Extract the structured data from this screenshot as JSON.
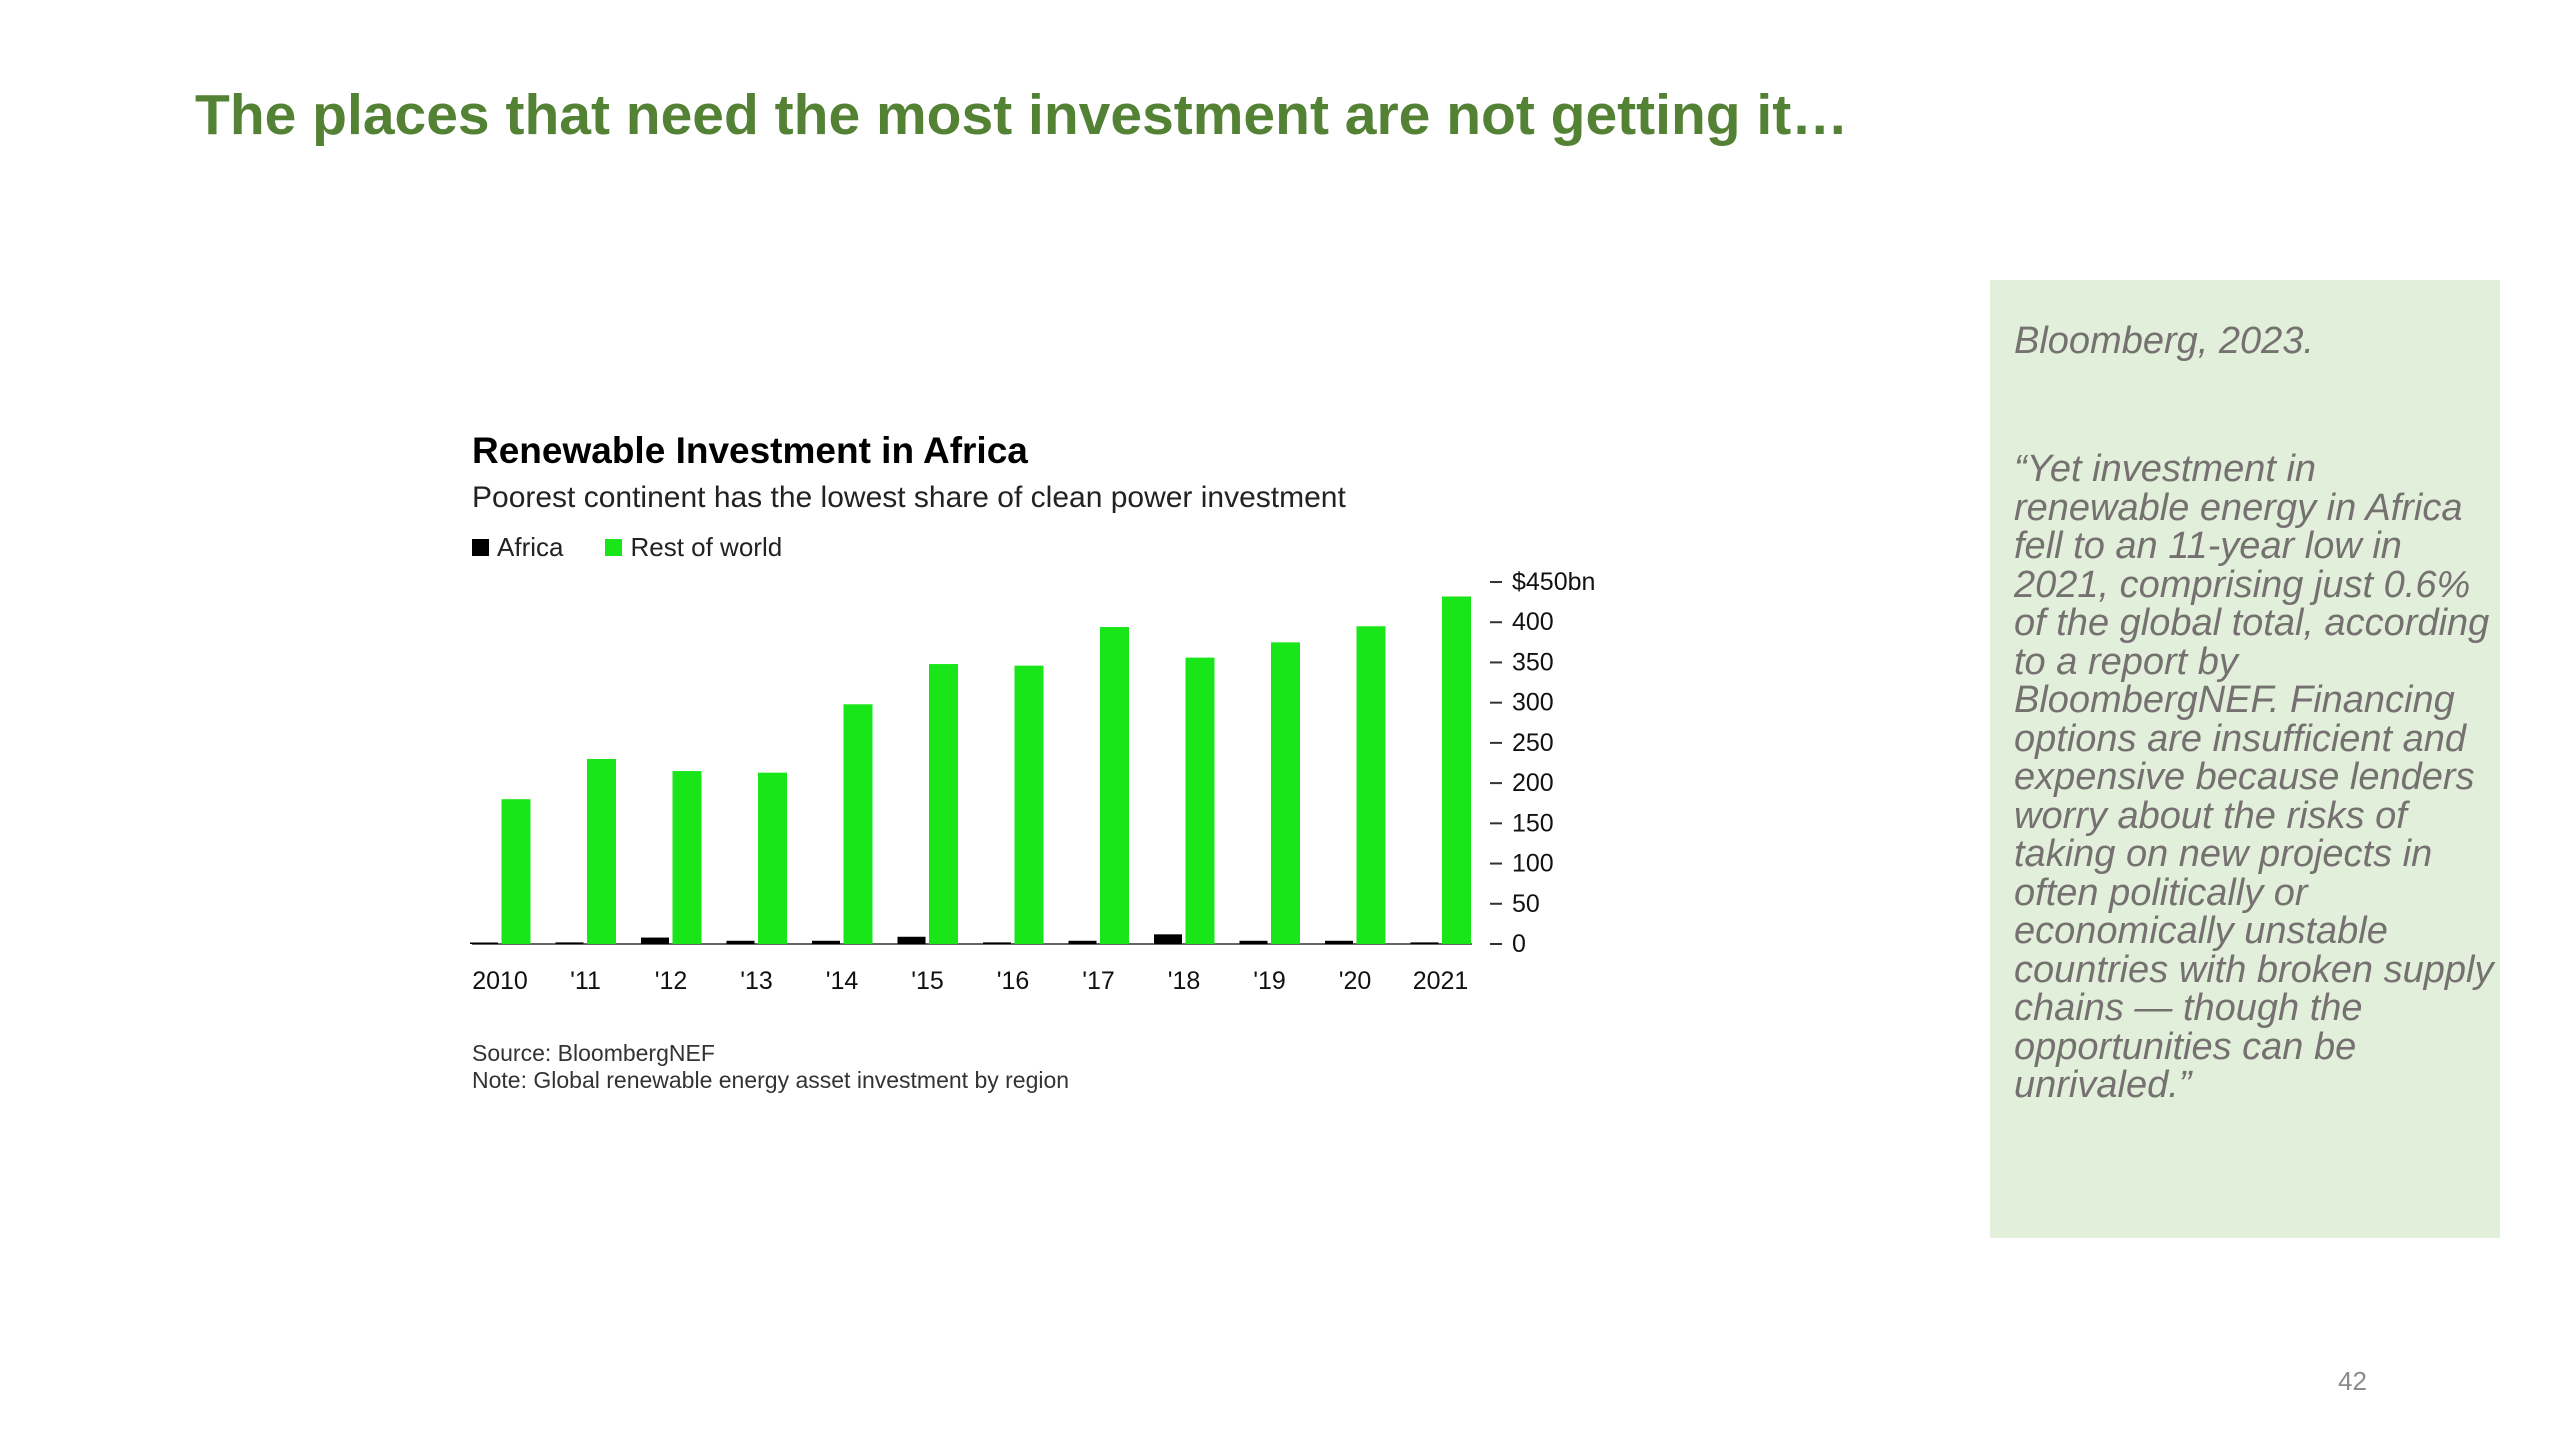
{
  "slide": {
    "title": "The places that need the most investment are not getting it…",
    "page_number": "42"
  },
  "chart_data": {
    "type": "bar",
    "title": "Renewable Investment in Africa",
    "subtitle": "Poorest continent has the lowest share of clean power investment",
    "categories": [
      "2010",
      "'11",
      "'12",
      "'13",
      "'14",
      "'15",
      "'16",
      "'17",
      "'18",
      "'19",
      "'20",
      "2021"
    ],
    "series": [
      {
        "name": "Africa",
        "color": "#000000",
        "values": [
          1,
          2,
          8,
          4,
          4,
          9,
          2,
          4,
          12,
          4,
          4,
          2
        ]
      },
      {
        "name": "Rest of world",
        "color": "#19e619",
        "values": [
          180,
          230,
          215,
          213,
          298,
          348,
          346,
          394,
          356,
          375,
          395,
          432
        ]
      }
    ],
    "y_ticks": [
      "$450bn",
      "400",
      "350",
      "300",
      "250",
      "200",
      "150",
      "100",
      "50",
      "0"
    ],
    "y_tick_values": [
      450,
      400,
      350,
      300,
      250,
      200,
      150,
      100,
      50,
      0
    ],
    "ylim": [
      0,
      450
    ],
    "y_axis_position": "right",
    "grid": false,
    "legend_position": "top-left",
    "source": "Source: BloombergNEF",
    "note": "Note: Global renewable energy asset investment by region"
  },
  "quote": {
    "citation": "Bloomberg, 2023.",
    "text": "“Yet investment in renewable energy in Africa fell to an 11-year low in 2021, comprising just 0.6% of the global total, according to a report by BloombergNEF. Financing options are insufficient and expensive because lenders worry about the risks of taking on new projects in often politically or economically unstable countries with broken supply chains — though the opportunities can be unrivaled.”"
  },
  "colors": {
    "title_green": "#548235",
    "panel_bg": "#e2efda",
    "panel_text": "#767171"
  }
}
